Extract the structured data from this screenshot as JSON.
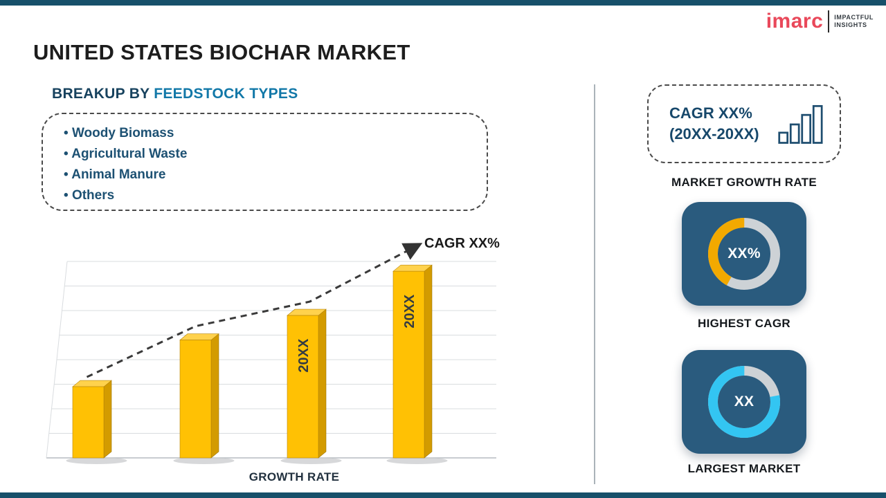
{
  "page": {
    "title": "UNITED STATES BIOCHAR MARKET"
  },
  "logo": {
    "brand": "imarc",
    "tagline_line1": "IMPACTFUL",
    "tagline_line2": "INSIGHTS"
  },
  "breakup": {
    "heading_prefix": "BREAKUP BY",
    "heading_highlight": "FEEDSTOCK TYPES",
    "items": [
      "Woody Biomass",
      "Agricultural Waste",
      "Animal Manure",
      "Others"
    ]
  },
  "chart_data": {
    "type": "bar",
    "title": "",
    "categories": [
      "",
      "",
      "20XX",
      "20XX"
    ],
    "values": [
      2.9,
      4.8,
      5.8,
      7.6
    ],
    "ylim": [
      0,
      8
    ],
    "values_note": "estimated in gridline units; y-axis unlabeled",
    "xlabel": "GROWTH RATE",
    "ylabel": "",
    "grid": true,
    "trend_annotation": "CAGR XX%",
    "bar_color": "#FFC104",
    "bar_side_color": "#D39B00",
    "bar_top_color": "#FFD24D",
    "bar_label_color": "#343b42"
  },
  "right_panel": {
    "cagr_card": {
      "line1": "CAGR XX%",
      "line2": "(20XX-20XX)"
    },
    "market_growth_rate_label": "MARKET GROWTH RATE",
    "highest_cagr": {
      "value": "XX%",
      "label": "HIGHEST CAGR",
      "fraction": 0.42,
      "arc_color": "#F2A900"
    },
    "largest_market": {
      "value": "XX",
      "label": "LARGEST MARKET",
      "fraction": 0.78,
      "arc_color": "#33C5F2"
    }
  },
  "colors": {
    "strip_navy": "#17506A",
    "tile_navy": "#2A5B7E",
    "ring_base": "#CDD2D6",
    "brand_red": "#E9485A",
    "heading_navy": "#17425E",
    "heading_blue": "#1278A8",
    "trend_line": "#3a3a3a"
  }
}
